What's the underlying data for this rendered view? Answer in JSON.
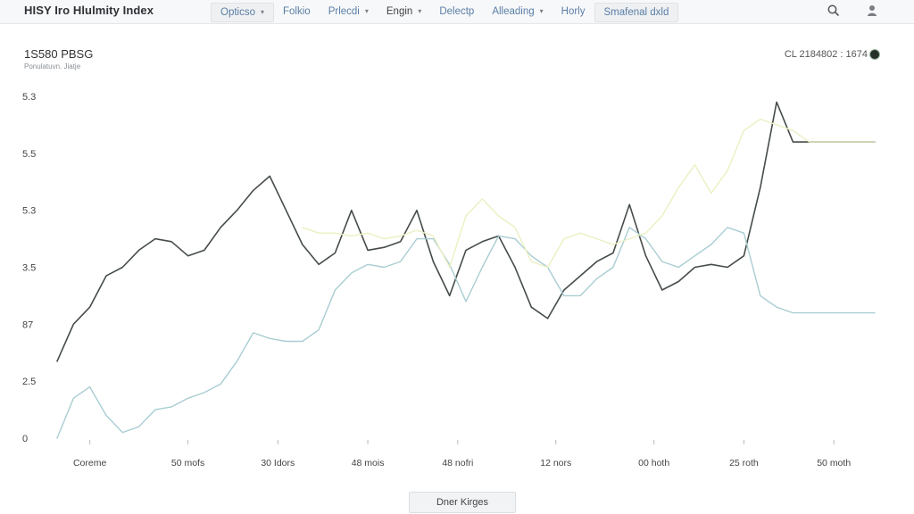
{
  "header": {
    "title": "HISY Iro Hlulmity Index",
    "tabs": [
      {
        "label": "Opticso",
        "dropdown": true
      },
      {
        "label": "Folkio",
        "dropdown": false
      },
      {
        "label": "Prlecdi",
        "dropdown": true
      },
      {
        "label": "Engin",
        "dropdown": true
      },
      {
        "label": "Delectp",
        "dropdown": false
      },
      {
        "label": "Alleading",
        "dropdown": true
      },
      {
        "label": "Horly",
        "dropdown": false
      },
      {
        "label": "Smafenal dxld",
        "dropdown": false
      }
    ],
    "icons": [
      "search-icon",
      "user-icon"
    ]
  },
  "subheader": {
    "title": "1S580 PBSG",
    "caption": "Ponulatuvn. Jiatje"
  },
  "readout": {
    "text": "CL 2184802 : 1674",
    "status_color": "#25302a"
  },
  "footer": {
    "button_label": "Dner Kirges"
  },
  "chart_data": {
    "type": "line",
    "title": "",
    "xlabel": "",
    "ylabel": "",
    "x": [
      0,
      2,
      4,
      6,
      8,
      10,
      12,
      14,
      16,
      18,
      20,
      22,
      24,
      26,
      28,
      30,
      32,
      34,
      36,
      38,
      40,
      42,
      44,
      46,
      48,
      50,
      52,
      54,
      56,
      58,
      60,
      62,
      64,
      66,
      68,
      70,
      72,
      74,
      76,
      78,
      80,
      82,
      84,
      86,
      88,
      90,
      92,
      94,
      96,
      98,
      100
    ],
    "xlim": [
      0,
      100
    ],
    "x_ticks": [
      {
        "x": 4,
        "label": "Coreme"
      },
      {
        "x": 16,
        "label": "50 mofs"
      },
      {
        "x": 27,
        "label": "30 Idors"
      },
      {
        "x": 38,
        "label": "48 mois"
      },
      {
        "x": 49,
        "label": "48 nofri"
      },
      {
        "x": 61,
        "label": "12 nors"
      },
      {
        "x": 73,
        "label": "00 hoth"
      },
      {
        "x": 84,
        "label": "25 roth"
      },
      {
        "x": 95,
        "label": "50 moth"
      }
    ],
    "y_ticks": [
      {
        "value": 0,
        "label": "0"
      },
      {
        "value": 1,
        "label": "2.5"
      },
      {
        "value": 2,
        "label": "87"
      },
      {
        "value": 3,
        "label": "3.5"
      },
      {
        "value": 4,
        "label": "5.3"
      },
      {
        "value": 5,
        "label": "5.5"
      },
      {
        "value": 6,
        "label": "5.3"
      }
    ],
    "ylim": [
      0,
      6
    ],
    "grid": false,
    "series": [
      {
        "color": "#454c4a",
        "width": 1.6,
        "values": [
          1.35,
          2.0,
          2.3,
          2.85,
          3.0,
          3.3,
          3.5,
          3.45,
          3.2,
          3.3,
          3.7,
          4.0,
          4.35,
          4.6,
          4.0,
          3.4,
          3.05,
          3.25,
          4.0,
          3.3,
          3.35,
          3.45,
          4.0,
          3.1,
          2.5,
          3.3,
          3.45,
          3.55,
          3.0,
          2.3,
          2.1,
          2.6,
          2.85,
          3.1,
          3.25,
          4.1,
          3.2,
          2.6,
          2.75,
          3.0,
          3.05,
          3.0,
          3.2,
          4.4,
          5.9,
          5.2,
          5.2,
          5.2,
          5.2,
          5.2,
          5.2
        ]
      },
      {
        "color": "#a9cdd2",
        "width": 1.4,
        "values": [
          0.0,
          0.7,
          0.9,
          0.4,
          0.1,
          0.2,
          0.5,
          0.55,
          0.7,
          0.8,
          0.95,
          1.35,
          1.85,
          1.75,
          1.7,
          1.7,
          1.9,
          2.6,
          2.9,
          3.05,
          3.0,
          3.1,
          3.5,
          3.5,
          3.05,
          2.4,
          3.0,
          3.55,
          3.5,
          3.2,
          3.0,
          2.5,
          2.5,
          2.8,
          3.0,
          3.7,
          3.5,
          3.1,
          3.0,
          3.2,
          3.4,
          3.7,
          3.6,
          2.5,
          2.3,
          2.2,
          2.2,
          2.2,
          2.2,
          2.2,
          2.2
        ]
      },
      {
        "color": "#ebf0c2",
        "width": 1.4,
        "values": [
          null,
          null,
          null,
          null,
          null,
          null,
          null,
          null,
          null,
          null,
          null,
          null,
          null,
          null,
          null,
          3.7,
          3.6,
          3.6,
          3.55,
          3.6,
          3.5,
          3.55,
          3.65,
          3.55,
          3.0,
          3.9,
          4.2,
          3.9,
          3.7,
          3.1,
          3.0,
          3.5,
          3.6,
          3.5,
          3.4,
          3.5,
          3.6,
          3.9,
          4.4,
          4.8,
          4.3,
          4.7,
          5.4,
          5.6,
          5.5,
          5.4,
          5.2,
          5.2,
          5.2,
          5.2,
          5.2
        ]
      }
    ]
  }
}
